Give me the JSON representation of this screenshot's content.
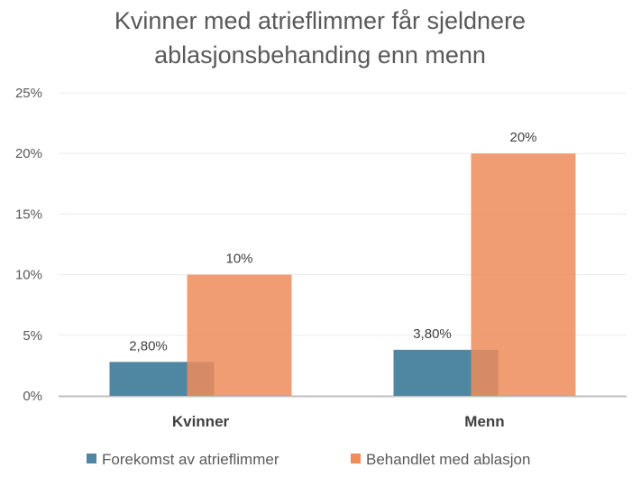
{
  "chart_data": {
    "type": "bar",
    "title_lines": [
      "Kvinner med atrieflimmer får sjeldnere",
      "ablasjonsbehanding enn menn"
    ],
    "categories": [
      "Kvinner",
      "Menn"
    ],
    "series": [
      {
        "name": "Forekomst av atrieflimmer",
        "values": [
          2.8,
          3.8
        ],
        "labels": [
          "2,80%",
          "3,80%"
        ],
        "color": "#4f86a2"
      },
      {
        "name": "Behandlet med ablasjon",
        "values": [
          10,
          20
        ],
        "labels": [
          "10%",
          "20%"
        ],
        "color": "#ee8c5a"
      }
    ],
    "y_ticks": [
      "0%",
      "5%",
      "10%",
      "15%",
      "20%",
      "25%"
    ],
    "ylim": [
      0,
      25
    ],
    "y_unit": "percent",
    "overlapping_bars": true,
    "grid": true,
    "legend_position": "bottom"
  }
}
